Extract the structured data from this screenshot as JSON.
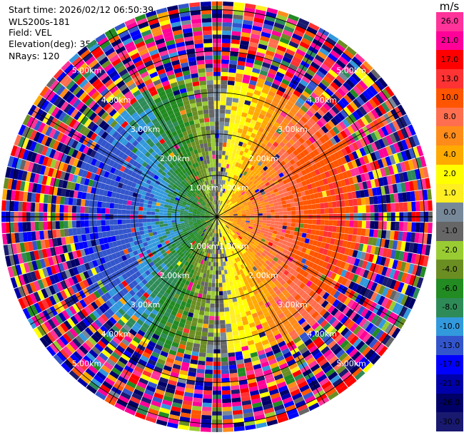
{
  "header": {
    "start_time": "Start time: 2026/02/12 06:50:39",
    "instrument": "WLS200s-181",
    "field": "Field: VEL",
    "elevation": "Elevation(deg): 35.00",
    "nrays": "NRays: 120"
  },
  "colorbar": {
    "unit": "m/s",
    "levels": [
      {
        "label": "26.0",
        "color": "#ff3399"
      },
      {
        "label": "21.0",
        "color": "#ff0099"
      },
      {
        "label": "17.0",
        "color": "#ff0000"
      },
      {
        "label": "13.0",
        "color": "#ff3333"
      },
      {
        "label": "10.0",
        "color": "#ff5500"
      },
      {
        "label": "8.0",
        "color": "#ff6f4f"
      },
      {
        "label": "6.0",
        "color": "#ff8c1a"
      },
      {
        "label": "4.0",
        "color": "#ffaa00"
      },
      {
        "label": "2.0",
        "color": "#ffff00"
      },
      {
        "label": "1.0",
        "color": "#ffee22"
      },
      {
        "label": "0.0",
        "color": "#778899"
      },
      {
        "label": "-1.0",
        "color": "#666666"
      },
      {
        "label": "-2.0",
        "color": "#99cc33"
      },
      {
        "label": "-4.0",
        "color": "#6b8e23"
      },
      {
        "label": "-6.0",
        "color": "#228b22"
      },
      {
        "label": "-8.0",
        "color": "#2e8b57"
      },
      {
        "label": "-10.0",
        "color": "#3399dd"
      },
      {
        "label": "-13.0",
        "color": "#3355cc"
      },
      {
        "label": "-17.0",
        "color": "#0000ff"
      },
      {
        "label": "-21.0",
        "color": "#0000aa"
      },
      {
        "label": "-26.0",
        "color": "#000066"
      },
      {
        "label": "-30.0",
        "color": "#191970"
      }
    ]
  },
  "chart_data": {
    "type": "heatmap",
    "projection": "polar PPI",
    "field": "VEL",
    "units": "m/s",
    "n_rays": 120,
    "range_rings_km": [
      1.0,
      2.0,
      3.0,
      4.0,
      5.0
    ],
    "ring_labels": [
      "1.00km",
      "2.00km",
      "3.00km",
      "4.00km",
      "5.00km"
    ],
    "max_range_km": 5.2,
    "velocity_pattern": {
      "approaching_side": "west",
      "receding_side": "east",
      "zero_line_azimuth_deg": [
        0,
        180
      ],
      "peak_speed_ms": 13.0,
      "noise_beyond_km": 3.2
    }
  }
}
